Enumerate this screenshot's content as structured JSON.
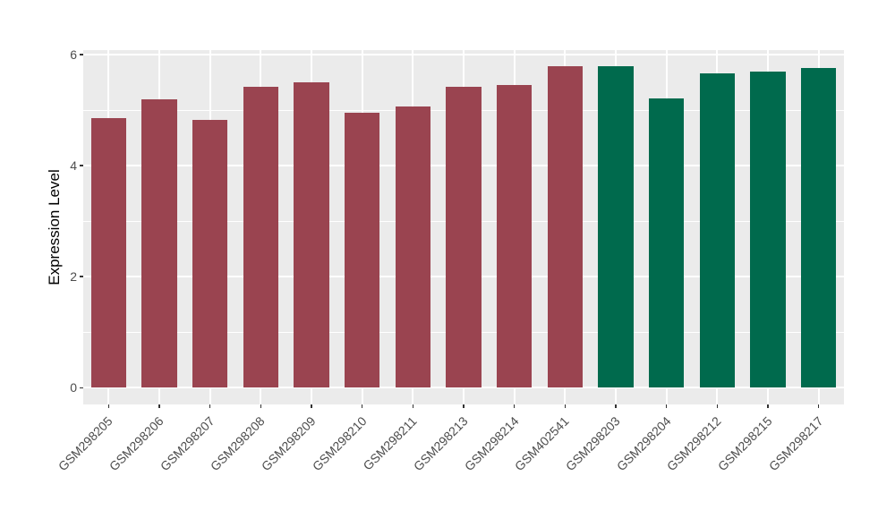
{
  "figure": {
    "title": "",
    "colors": {
      "background": "#FFFFFF",
      "panel_background": "#EBEBEB",
      "gridline": "#FFFFFF",
      "tick_mark": "#333333",
      "axis_text": "#4D4D4D",
      "axis_title": "#000000",
      "control_group_bar": "#9A4450",
      "test_group_bar": "#006A4D"
    }
  },
  "chart_data": {
    "type": "bar",
    "title": "",
    "xlabel": "",
    "ylabel": "Expression Level",
    "categories": [
      "GSM298205",
      "GSM298206",
      "GSM298207",
      "GSM298208",
      "GSM298209",
      "GSM298210",
      "GSM298211",
      "GSM298213",
      "GSM298214",
      "GSM402541",
      "GSM298203",
      "GSM298204",
      "GSM298212",
      "GSM298215",
      "GSM298217"
    ],
    "values": [
      4.85,
      5.19,
      4.82,
      5.42,
      5.5,
      4.96,
      5.07,
      5.42,
      5.45,
      5.79,
      5.79,
      5.21,
      5.66,
      5.7,
      5.76
    ],
    "bar_colors": [
      "#9A4450",
      "#9A4450",
      "#9A4450",
      "#9A4450",
      "#9A4450",
      "#9A4450",
      "#9A4450",
      "#9A4450",
      "#9A4450",
      "#9A4450",
      "#006A4D",
      "#006A4D",
      "#006A4D",
      "#006A4D",
      "#006A4D"
    ],
    "groups": [
      {
        "color": "#9A4450",
        "categories": [
          "GSM298205",
          "GSM298206",
          "GSM298207",
          "GSM298208",
          "GSM298209",
          "GSM298210",
          "GSM298211",
          "GSM298213",
          "GSM298214",
          "GSM402541"
        ]
      },
      {
        "color": "#006A4D",
        "categories": [
          "GSM298203",
          "GSM298204",
          "GSM298212",
          "GSM298215",
          "GSM298217"
        ]
      }
    ],
    "ylim": [
      -0.3,
      6.08
    ],
    "yticks": [
      0,
      2,
      4,
      6
    ],
    "yticks_minor": [
      1,
      3,
      5
    ],
    "grid": true,
    "legend": "none",
    "x_tick_rotation": 45,
    "bar_width_fraction": 0.7
  }
}
